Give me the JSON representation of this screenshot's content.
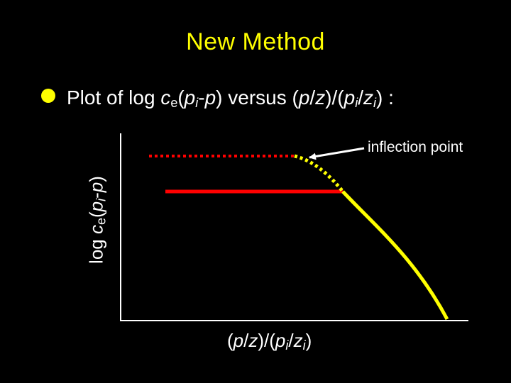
{
  "slide": {
    "title": "New Method"
  },
  "bullet": {
    "prefix": "Plot of log ",
    "c": "c",
    "c_sub": "e",
    "open": "(",
    "p1": "p",
    "p1_sub": "i",
    "dash": "-",
    "p2": "p",
    "mid": ") versus (",
    "p3": "p",
    "slash1": "/",
    "z1": "z",
    "mid2": ")/(",
    "p4": "p",
    "p4_sub": "i",
    "slash2": "/",
    "z2": "z",
    "z2_sub": "i",
    "suffix": ") :"
  },
  "ylabel": {
    "prefix": "log ",
    "c": "c",
    "c_sub": "e",
    "open": "(",
    "p1": "p",
    "p1_sub": "i",
    "dash": "-",
    "p2": "p",
    "close": ")"
  },
  "xlabel": {
    "open": "(",
    "p": "p",
    "slash1": "/",
    "z": "z",
    "mid": ")/(",
    "p2": "p",
    "p2_sub": "i",
    "slash2": "/",
    "z2": "z",
    "z2_sub": "i",
    "close": ")"
  },
  "annotation": {
    "text": "inflection point"
  },
  "colors": {
    "background": "#000000",
    "title": "#ffff00",
    "curve": "#ffff00",
    "plateau": "#ff0000",
    "axes": "#ffffff"
  }
}
